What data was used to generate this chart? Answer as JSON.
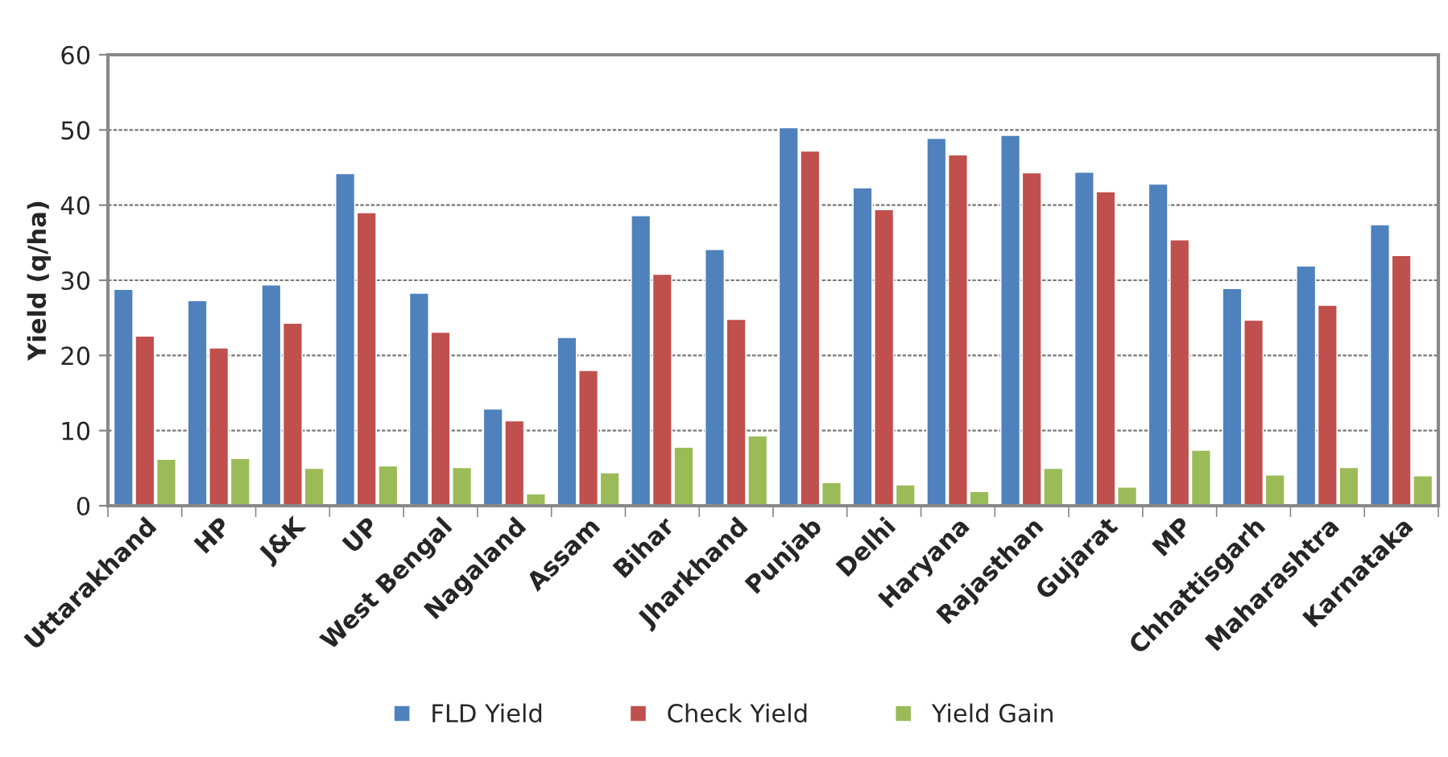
{
  "chart_data": {
    "type": "bar",
    "ylabel": "Yield (q/ha)",
    "categories": [
      "Uttarakhand",
      "HP",
      "J&K",
      "UP",
      "West Bengal",
      "Nagaland",
      "Assam",
      "Bihar",
      "Jharkhand",
      "Punjab",
      "Delhi",
      "Haryana",
      "Rajasthan",
      "Gujarat",
      "MP",
      "Chhattisgarh",
      "Maharashtra",
      "Karnataka"
    ],
    "series": [
      {
        "name": "FLD Yield",
        "color": "#4f81bd",
        "values": [
          28.8,
          27.3,
          29.4,
          44.2,
          28.3,
          12.9,
          22.4,
          38.6,
          34.1,
          50.3,
          42.3,
          48.9,
          49.3,
          44.4,
          42.8,
          28.9,
          31.9,
          37.4
        ]
      },
      {
        "name": "Check Yield",
        "color": "#c0504d",
        "values": [
          22.6,
          21.0,
          24.3,
          39.0,
          23.1,
          11.3,
          18.0,
          30.8,
          24.8,
          47.2,
          39.4,
          46.7,
          44.3,
          41.8,
          35.4,
          24.7,
          26.7,
          33.3
        ]
      },
      {
        "name": "Yield Gain",
        "color": "#9bbb59",
        "values": [
          6.2,
          6.3,
          5.0,
          5.3,
          5.1,
          1.6,
          4.4,
          7.8,
          9.3,
          3.1,
          2.8,
          1.9,
          5.0,
          2.5,
          7.4,
          4.1,
          5.1,
          4.0
        ]
      }
    ],
    "ylim": [
      0,
      60
    ],
    "yticks": [
      0,
      10,
      20,
      30,
      40,
      50,
      60
    ],
    "grid": "y",
    "legend": "bottom"
  }
}
